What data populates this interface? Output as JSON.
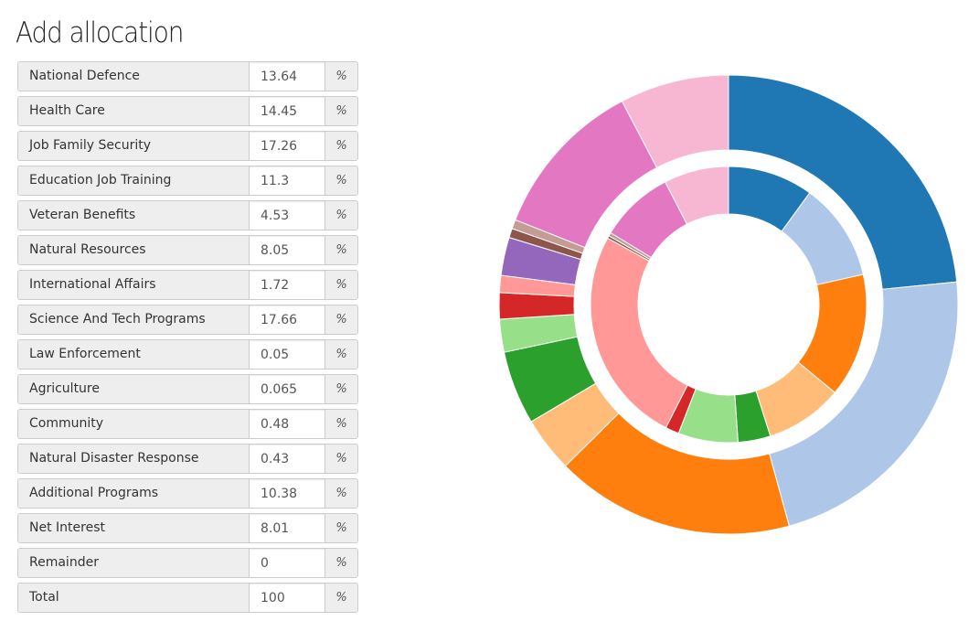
{
  "page": {
    "title": "Add allocation"
  },
  "unit_symbol": "%",
  "allocations": [
    {
      "label": "National Defence",
      "value": "13.64"
    },
    {
      "label": "Health Care",
      "value": "14.45"
    },
    {
      "label": "Job Family Security",
      "value": "17.26"
    },
    {
      "label": "Education Job Training",
      "value": "11.3"
    },
    {
      "label": "Veteran Benefits",
      "value": "4.53"
    },
    {
      "label": "Natural Resources",
      "value": "8.05"
    },
    {
      "label": "International Affairs",
      "value": "1.72"
    },
    {
      "label": "Science And Tech Programs",
      "value": "17.66"
    },
    {
      "label": "Law Enforcement",
      "value": "0.05"
    },
    {
      "label": "Agriculture",
      "value": "0.065"
    },
    {
      "label": "Community",
      "value": "0.48"
    },
    {
      "label": "Natural Disaster Response",
      "value": "0.43"
    },
    {
      "label": "Additional Programs",
      "value": "10.38"
    },
    {
      "label": "Net Interest",
      "value": "8.01"
    },
    {
      "label": "Remainder",
      "value": "0"
    },
    {
      "label": "Total",
      "value": "100"
    }
  ],
  "chart_data": {
    "type": "donut",
    "rings": [
      {
        "ring": "outer",
        "slices": [
          {
            "value": 25.3,
            "color": "#1f77b4"
          },
          {
            "value": 24.1,
            "color": "#aec7e8"
          },
          {
            "value": 18.2,
            "color": "#ff7f0e"
          },
          {
            "value": 4.2,
            "color": "#ffbb78"
          },
          {
            "value": 5.6,
            "color": "#2ca02c"
          },
          {
            "value": 2.5,
            "color": "#98df8a"
          },
          {
            "value": 2.0,
            "color": "#d62728"
          },
          {
            "value": 1.3,
            "color": "#ff9896"
          },
          {
            "value": 2.9,
            "color": "#9467bd"
          },
          {
            "value": 0.7,
            "color": "#8c564b"
          },
          {
            "value": 0.7,
            "color": "#c49c94"
          },
          {
            "value": 12.2,
            "color": "#e377c2"
          },
          {
            "value": 8.3,
            "color": "#f7b6d2"
          }
        ]
      },
      {
        "ring": "inner",
        "slices": [
          {
            "value": 10.0,
            "color": "#1f77b4"
          },
          {
            "value": 11.5,
            "color": "#aec7e8"
          },
          {
            "value": 14.5,
            "color": "#ff7f0e"
          },
          {
            "value": 9.1,
            "color": "#ffbb78"
          },
          {
            "value": 3.8,
            "color": "#2ca02c"
          },
          {
            "value": 7.0,
            "color": "#98df8a"
          },
          {
            "value": 1.6,
            "color": "#d62728"
          },
          {
            "value": 25.5,
            "color": "#ff9896"
          },
          {
            "value": 0.3,
            "color": "#8c564b"
          },
          {
            "value": 0.4,
            "color": "#c49c94"
          },
          {
            "value": 8.7,
            "color": "#e377c2"
          },
          {
            "value": 7.6,
            "color": "#f7b6d2"
          }
        ]
      }
    ]
  }
}
